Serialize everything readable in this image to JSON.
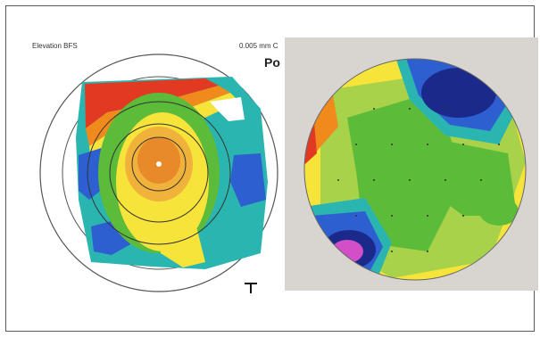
{
  "left_map": {
    "title": "Elevation BFS",
    "scale_text": "0.005 mm C",
    "heading_fragment": "Po"
  },
  "colors": {
    "red": "#e23a22",
    "orange": "#f08a1c",
    "yellow": "#f6e43a",
    "green": "#5dbb3a",
    "light_green": "#a7d24a",
    "teal": "#2bb5b0",
    "blue": "#2d5fd0",
    "deep_blue": "#1b2a8a",
    "magenta": "#d24fc8"
  }
}
